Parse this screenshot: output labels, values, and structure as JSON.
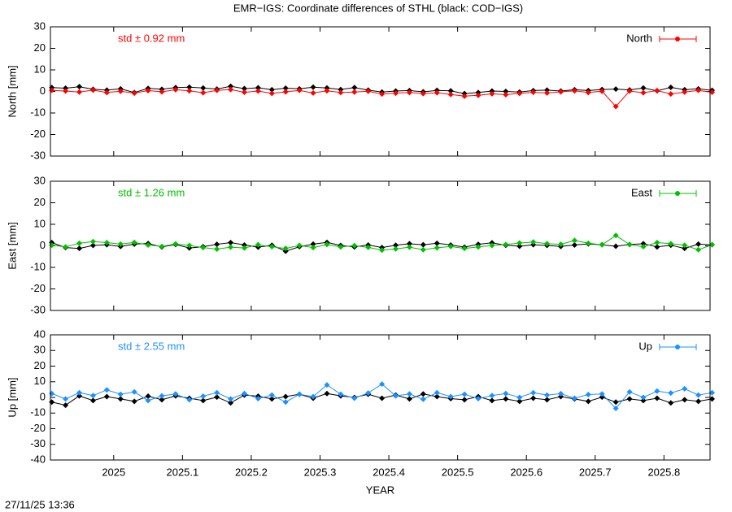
{
  "title": "EMR−IGS: Coordinate differences of STHL (black: COD−IGS)",
  "timestamp": "27/11/25 13:36",
  "chart_data": [
    {
      "type": "line",
      "ylabel": "North [mm]",
      "annotation": "std ± 0.92 mm",
      "xlim": [
        2024.908,
        2025.867
      ],
      "xticks": [
        2025,
        2025.1,
        2025.2,
        2025.3,
        2025.4,
        2025.5,
        2025.6,
        2025.7,
        2025.8
      ],
      "ylim": [
        -30,
        30
      ],
      "yticks": [
        -30,
        -20,
        -10,
        0,
        10,
        20,
        30
      ],
      "x": [
        2024.91,
        2024.93,
        2024.95,
        2024.97,
        2024.99,
        2025.01,
        2025.03,
        2025.05,
        2025.07,
        2025.09,
        2025.11,
        2025.13,
        2025.15,
        2025.17,
        2025.19,
        2025.21,
        2025.23,
        2025.25,
        2025.27,
        2025.29,
        2025.31,
        2025.33,
        2025.35,
        2025.37,
        2025.39,
        2025.41,
        2025.43,
        2025.45,
        2025.47,
        2025.49,
        2025.51,
        2025.53,
        2025.55,
        2025.57,
        2025.59,
        2025.61,
        2025.63,
        2025.65,
        2025.67,
        2025.69,
        2025.71,
        2025.73,
        2025.75,
        2025.77,
        2025.79,
        2025.81,
        2025.83,
        2025.85,
        2025.87
      ],
      "series": [
        {
          "color": "#000000",
          "values": [
            1.8,
            1.5,
            2.2,
            1.0,
            0.6,
            1.2,
            -0.5,
            1.4,
            1.0,
            1.8,
            2.0,
            1.6,
            1.1,
            2.4,
            1.3,
            1.7,
            0.8,
            1.5,
            1.2,
            2.0,
            1.6,
            0.9,
            1.8,
            0.6,
            -0.3,
            0.2,
            0.4,
            -0.2,
            0.5,
            0.3,
            -1.0,
            -0.5,
            0.2,
            0.0,
            -0.3,
            0.4,
            0.6,
            0.2,
            0.8,
            0.4,
            0.9,
            1.1,
            0.7,
            1.6,
            0.3,
            1.9,
            0.8,
            1.2,
            0.5
          ]
        },
        {
          "name": "North",
          "color": "#ff0000",
          "values": [
            0.5,
            0.2,
            -0.3,
            0.6,
            -0.5,
            0.1,
            -0.8,
            0.4,
            -0.2,
            0.8,
            0.3,
            -0.6,
            0.5,
            0.9,
            -0.4,
            0.2,
            -0.9,
            -0.2,
            0.5,
            -0.7,
            0.3,
            -0.5,
            -0.3,
            0.1,
            -1.2,
            -0.8,
            -0.5,
            -1.0,
            -0.6,
            -1.4,
            -2.2,
            -1.8,
            -1.1,
            -1.5,
            -0.9,
            -0.4,
            -0.7,
            -0.2,
            0.3,
            -0.5,
            0.1,
            -7.0,
            0.2,
            -0.6,
            0.4,
            -1.2,
            -0.3,
            0.5,
            -0.4
          ]
        }
      ]
    },
    {
      "type": "line",
      "ylabel": "East [mm]",
      "annotation": "std ± 1.26 mm",
      "xlim": [
        2024.908,
        2025.867
      ],
      "xticks": [
        2025,
        2025.1,
        2025.2,
        2025.3,
        2025.4,
        2025.5,
        2025.6,
        2025.7,
        2025.8
      ],
      "ylim": [
        -30,
        30
      ],
      "yticks": [
        -30,
        -20,
        -10,
        0,
        10,
        20,
        30
      ],
      "x": [
        2024.91,
        2024.93,
        2024.95,
        2024.97,
        2024.99,
        2025.01,
        2025.03,
        2025.05,
        2025.07,
        2025.09,
        2025.11,
        2025.13,
        2025.15,
        2025.17,
        2025.19,
        2025.21,
        2025.23,
        2025.25,
        2025.27,
        2025.29,
        2025.31,
        2025.33,
        2025.35,
        2025.37,
        2025.39,
        2025.41,
        2025.43,
        2025.45,
        2025.47,
        2025.49,
        2025.51,
        2025.53,
        2025.55,
        2025.57,
        2025.59,
        2025.61,
        2025.63,
        2025.65,
        2025.67,
        2025.69,
        2025.71,
        2025.73,
        2025.75,
        2025.77,
        2025.79,
        2025.81,
        2025.83,
        2025.85,
        2025.87
      ],
      "series": [
        {
          "color": "#000000",
          "values": [
            1.5,
            -0.8,
            -1.2,
            0.2,
            0.5,
            -0.3,
            0.8,
            1.1,
            -0.5,
            0.6,
            -1.0,
            -0.4,
            0.7,
            1.5,
            0.4,
            -0.6,
            0.3,
            -2.5,
            -0.4,
            0.8,
            1.6,
            0.2,
            -0.5,
            0.4,
            -0.8,
            0.3,
            1.0,
            0.5,
            1.2,
            0.4,
            -0.6,
            0.7,
            1.4,
            0.3,
            -0.2,
            0.5,
            0.2,
            -0.3,
            0.4,
            0.9,
            0.5,
            -0.2,
            0.6,
            1.0,
            -0.5,
            0.3,
            -1.2,
            0.8,
            0.5
          ]
        },
        {
          "name": "East",
          "color": "#00c000",
          "values": [
            0.3,
            -0.5,
            1.2,
            2.0,
            1.5,
            0.8,
            1.6,
            0.4,
            -0.3,
            0.9,
            0.2,
            -0.8,
            -1.5,
            -0.6,
            -1.0,
            0.5,
            -0.4,
            -1.2,
            0.2,
            -0.8,
            0.6,
            -0.5,
            0.1,
            -0.7,
            -2.0,
            -1.4,
            -0.6,
            -1.8,
            -0.9,
            -0.3,
            -1.2,
            -0.5,
            0.2,
            0.6,
            1.3,
            1.8,
            1.0,
            0.7,
            2.5,
            1.2,
            0.5,
            4.8,
            0.6,
            -0.4,
            1.5,
            1.0,
            0.3,
            -1.8,
            0.5
          ]
        }
      ]
    },
    {
      "type": "line",
      "ylabel": "Up [mm]",
      "annotation": "std ± 2.55 mm",
      "xlabel": "YEAR",
      "xlim": [
        2024.908,
        2025.867
      ],
      "xticks": [
        2025,
        2025.1,
        2025.2,
        2025.3,
        2025.4,
        2025.5,
        2025.6,
        2025.7,
        2025.8
      ],
      "ylim": [
        -40,
        40
      ],
      "yticks": [
        -40,
        -30,
        -20,
        -10,
        0,
        10,
        20,
        30,
        40
      ],
      "x": [
        2024.91,
        2024.93,
        2024.95,
        2024.97,
        2024.99,
        2025.01,
        2025.03,
        2025.05,
        2025.07,
        2025.09,
        2025.11,
        2025.13,
        2025.15,
        2025.17,
        2025.19,
        2025.21,
        2025.23,
        2025.25,
        2025.27,
        2025.29,
        2025.31,
        2025.33,
        2025.35,
        2025.37,
        2025.39,
        2025.41,
        2025.43,
        2025.45,
        2025.47,
        2025.49,
        2025.51,
        2025.53,
        2025.55,
        2025.57,
        2025.59,
        2025.61,
        2025.63,
        2025.65,
        2025.67,
        2025.69,
        2025.71,
        2025.73,
        2025.75,
        2025.77,
        2025.79,
        2025.81,
        2025.83,
        2025.85,
        2025.87
      ],
      "series": [
        {
          "color": "#000000",
          "values": [
            -3.0,
            -5.0,
            1.0,
            -2.0,
            0.5,
            -1.0,
            -2.5,
            0.8,
            -1.5,
            1.0,
            -0.5,
            -2.0,
            0.2,
            -3.5,
            1.5,
            0.8,
            -1.0,
            0.5,
            2.0,
            -0.5,
            2.5,
            1.0,
            0.0,
            2.0,
            -0.5,
            1.5,
            -1.0,
            2.2,
            0.5,
            -0.8,
            -1.5,
            0.5,
            -2.0,
            -1.0,
            -2.5,
            -0.5,
            -1.5,
            0.5,
            -1.0,
            -2.5,
            0.2,
            -3.0,
            -1.0,
            -2.0,
            -0.5,
            -3.5,
            -1.5,
            -2.5,
            -1.0
          ]
        },
        {
          "name": "Up",
          "color": "#1e90ff",
          "values": [
            2.5,
            -1.0,
            3.0,
            1.2,
            4.8,
            2.0,
            3.5,
            -2.0,
            1.0,
            2.2,
            -1.5,
            0.8,
            3.0,
            -1.0,
            2.5,
            -0.8,
            1.5,
            -3.0,
            2.0,
            0.5,
            8.0,
            2.0,
            -0.5,
            2.8,
            8.5,
            1.0,
            2.2,
            -1.2,
            3.0,
            0.5,
            2.0,
            -0.8,
            1.2,
            2.5,
            0.0,
            3.0,
            1.5,
            2.4,
            -0.5,
            1.8,
            2.2,
            -7.0,
            3.5,
            0.0,
            4.0,
            2.8,
            5.5,
            1.5,
            3.0
          ]
        }
      ]
    }
  ]
}
